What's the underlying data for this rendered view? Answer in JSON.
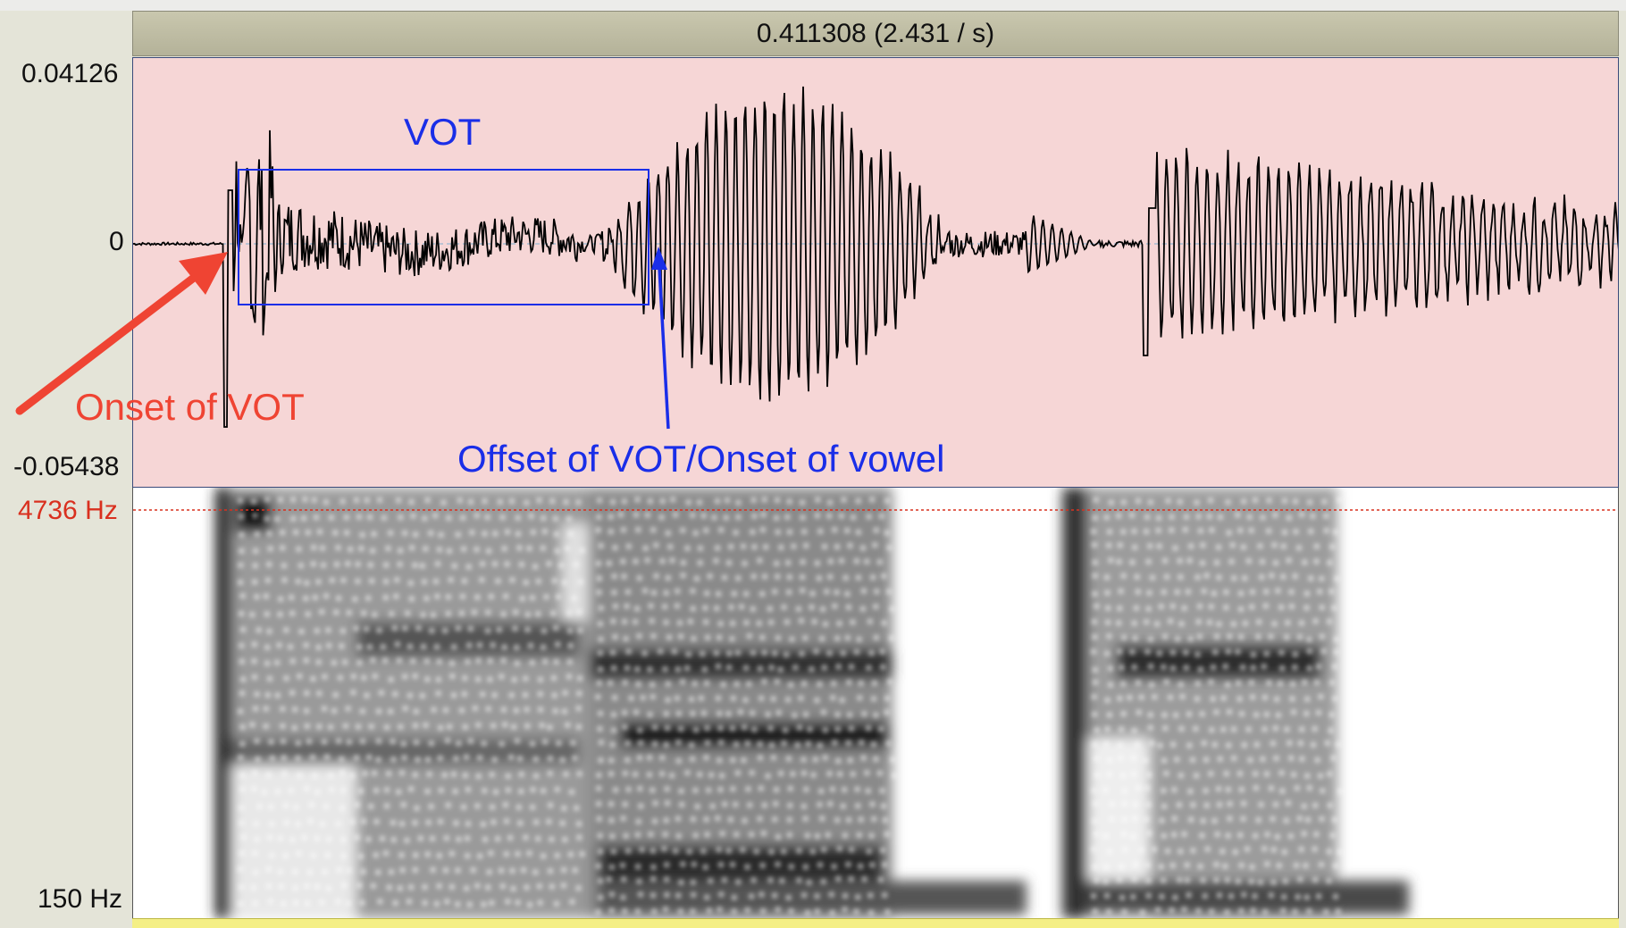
{
  "selection": {
    "duration_label": "0.411308 (2.431 / s)"
  },
  "waveform": {
    "y_max_label": "0.04126",
    "y_zero_label": "0",
    "y_min_label": "-0.05438"
  },
  "spectrogram": {
    "top_freq_label": "4736 Hz",
    "bottom_freq_label": "150 Hz"
  },
  "annotations": {
    "vot_label": "VOT",
    "onset_label": "Onset of VOT",
    "offset_label": "Offset of VOT/Onset of vowel"
  },
  "colors": {
    "waveform_bg": "#f6d6d6",
    "annotation_red": "#ef4433",
    "annotation_blue": "#1a2ee8",
    "freq_marker": "#d9301f"
  }
}
